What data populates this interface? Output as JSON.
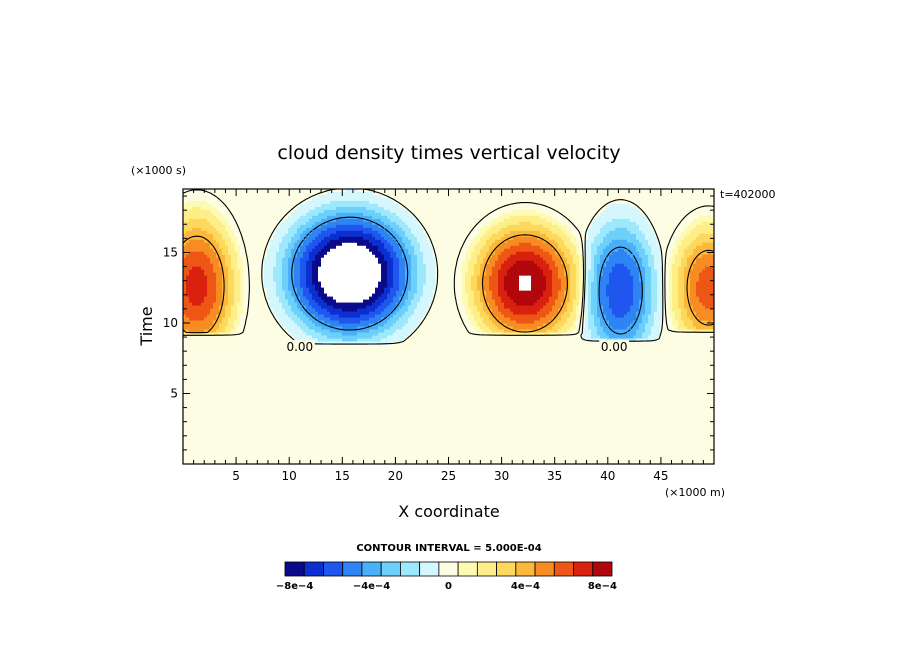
{
  "chart_data": {
    "type": "heatmap",
    "title": "cloud density times vertical velocity",
    "xlabel": "X coordinate",
    "ylabel": "Time",
    "x_scale_label": "(×1000 m)",
    "y_scale_label": "(×1000 s)",
    "time_stamp": "t=402000",
    "xlim": [
      0,
      50
    ],
    "ylim": [
      0,
      19.5
    ],
    "x_ticks": [
      5,
      10,
      15,
      20,
      25,
      30,
      35,
      40,
      45
    ],
    "y_ticks": [
      5,
      10,
      15
    ],
    "contour_interval_text": "CONTOUR INTERVAL = 5.000E-04",
    "contour_labels": [
      {
        "text": "0.00",
        "x": 11.0,
        "y": 8.3
      },
      {
        "text": "0.00",
        "x": 40.6,
        "y": 8.3
      }
    ],
    "colorbar": {
      "levels": [
        -0.001,
        -0.0009,
        -0.0008,
        -0.0007,
        -0.0006,
        -0.0005,
        -0.0004,
        -0.0003,
        -0.0002,
        -0.0001,
        0,
        0.0001,
        0.0002,
        0.0003,
        0.0004,
        0.0005,
        0.0006,
        0.0007,
        0.0008,
        0.0009,
        0.001
      ],
      "colors": [
        "#0a0a8a",
        "#0b2fd0",
        "#1e56ee",
        "#2f84f4",
        "#49aff8",
        "#6cd0fb",
        "#9de8fd",
        "#d3f7fd",
        "#fdfde3",
        "#fdfbb3",
        "#fdee88",
        "#fcd95d",
        "#fbb83a",
        "#f78d22",
        "#ee5615",
        "#d9210f",
        "#b0070c"
      ],
      "tick_values": [
        -0.0008,
        -0.0004,
        0,
        0.0004,
        0.0008
      ],
      "tick_labels": [
        "−8e−4",
        "−4e−4",
        "0",
        "4e−4",
        "8e−4"
      ]
    },
    "background_color": "#fdfde3",
    "cells": [
      {
        "sign": "pos",
        "xc": 1.3,
        "yc": 12.6,
        "rx": 5.5,
        "ry": 7.6,
        "peak": 0.00082,
        "min_y": 9.3
      },
      {
        "sign": "neg",
        "xc": 15.7,
        "yc": 13.5,
        "rx": 9.0,
        "ry": 6.6,
        "peak": 0.00125,
        "min_y": 8.6
      },
      {
        "sign": "pos",
        "xc": 32.2,
        "yc": 12.8,
        "rx": 7.3,
        "ry": 6.3,
        "peak": 0.00102,
        "min_y": 9.3
      },
      {
        "sign": "neg",
        "xc": 41.2,
        "yc": 12.3,
        "rx": 4.8,
        "ry": 7.2,
        "peak": 0.00075,
        "min_y": 8.7
      },
      {
        "sign": "pos",
        "xc": 49.5,
        "yc": 12.5,
        "rx": 5.0,
        "ry": 6.5,
        "peak": 0.00072,
        "min_y": 9.4
      }
    ]
  }
}
